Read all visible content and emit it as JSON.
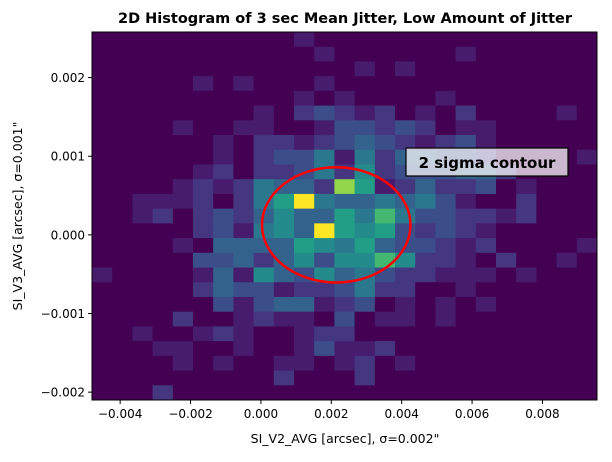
{
  "chart_data": {
    "type": "heatmap",
    "subtype": "2d-histogram",
    "title": "2D Histogram of 3 sec Mean Jitter, Low Amount of Jitter",
    "xlabel": "SI_V2_AVG [arcsec], σ=0.002\"",
    "ylabel": "SI_V3_AVG [arcsec], σ=0.001\"",
    "xlim": [
      -0.0048,
      0.00955
    ],
    "ylim": [
      -0.0021,
      0.00258
    ],
    "x_ticks": [
      "−0.004",
      "−0.002",
      "0.000",
      "0.002",
      "0.004",
      "0.006",
      "0.008"
    ],
    "x_tick_values": [
      -0.004,
      -0.002,
      0.0,
      0.002,
      0.004,
      0.006,
      0.008
    ],
    "y_ticks": [
      "−0.002",
      "−0.001",
      "0.000",
      "0.001",
      "0.002"
    ],
    "y_tick_values": [
      -0.002,
      -0.001,
      0.0,
      0.001,
      0.002
    ],
    "colormap": "viridis",
    "grid": false,
    "bins": [
      25,
      25
    ],
    "counts_rows_top_to_bottom": [
      [
        0,
        0,
        0,
        0,
        0,
        0,
        0,
        0,
        0,
        0,
        1,
        0,
        0,
        0,
        0,
        0,
        0,
        0,
        0,
        0,
        0,
        0,
        0,
        0,
        0
      ],
      [
        0,
        0,
        0,
        0,
        0,
        0,
        0,
        0,
        0,
        0,
        0,
        1,
        0,
        0,
        0,
        0,
        0,
        0,
        1,
        0,
        0,
        0,
        0,
        0,
        0
      ],
      [
        0,
        0,
        0,
        0,
        0,
        0,
        0,
        0,
        0,
        0,
        0,
        0,
        0,
        1,
        0,
        1,
        0,
        0,
        0,
        0,
        0,
        0,
        0,
        0,
        0
      ],
      [
        0,
        0,
        0,
        0,
        0,
        1,
        0,
        1,
        0,
        0,
        0,
        1,
        0,
        0,
        0,
        0,
        0,
        0,
        0,
        0,
        0,
        0,
        0,
        0,
        0
      ],
      [
        0,
        0,
        0,
        0,
        0,
        0,
        0,
        0,
        0,
        0,
        1,
        0,
        1,
        0,
        0,
        0,
        0,
        1,
        0,
        0,
        0,
        0,
        0,
        0,
        0
      ],
      [
        0,
        0,
        0,
        0,
        0,
        0,
        0,
        0,
        1,
        0,
        2,
        3,
        2,
        1,
        2,
        0,
        1,
        0,
        2,
        0,
        0,
        0,
        0,
        1,
        0
      ],
      [
        0,
        0,
        0,
        0,
        1,
        0,
        0,
        1,
        1,
        0,
        0,
        1,
        3,
        3,
        2,
        3,
        2,
        0,
        1,
        1,
        0,
        0,
        0,
        0,
        0
      ],
      [
        0,
        0,
        0,
        0,
        0,
        0,
        1,
        0,
        2,
        2,
        1,
        2,
        3,
        4,
        3,
        2,
        1,
        2,
        3,
        1,
        0,
        0,
        0,
        0,
        0
      ],
      [
        0,
        0,
        0,
        0,
        0,
        0,
        1,
        0,
        2,
        3,
        3,
        5,
        1,
        5,
        2,
        4,
        4,
        3,
        3,
        2,
        0,
        0,
        0,
        0,
        1
      ],
      [
        0,
        0,
        0,
        0,
        0,
        1,
        2,
        0,
        2,
        2,
        3,
        5,
        2,
        6,
        2,
        3,
        3,
        3,
        4,
        4,
        2,
        0,
        0,
        0,
        0
      ],
      [
        0,
        0,
        0,
        0,
        1,
        2,
        1,
        2,
        5,
        4,
        4,
        2,
        9,
        7,
        1,
        2,
        4,
        2,
        2,
        3,
        0,
        1,
        0,
        0,
        0
      ],
      [
        0,
        0,
        1,
        1,
        1,
        2,
        0,
        2,
        5,
        7,
        10,
        5,
        4,
        4,
        5,
        4,
        5,
        3,
        1,
        0,
        0,
        2,
        0,
        0,
        0
      ],
      [
        0,
        0,
        1,
        2,
        0,
        2,
        3,
        2,
        4,
        6,
        4,
        4,
        7,
        5,
        8,
        5,
        3,
        3,
        2,
        2,
        1,
        2,
        0,
        0,
        0
      ],
      [
        0,
        0,
        0,
        0,
        0,
        2,
        3,
        1,
        5,
        6,
        4,
        10,
        7,
        6,
        7,
        3,
        2,
        3,
        2,
        1,
        0,
        0,
        0,
        0,
        0
      ],
      [
        0,
        0,
        0,
        0,
        1,
        0,
        4,
        4,
        4,
        4,
        7,
        6,
        5,
        7,
        4,
        3,
        3,
        2,
        1,
        2,
        0,
        0,
        0,
        0,
        1
      ],
      [
        0,
        0,
        0,
        0,
        0,
        3,
        3,
        4,
        2,
        4,
        6,
        3,
        6,
        6,
        8,
        6,
        2,
        2,
        1,
        0,
        2,
        0,
        0,
        1,
        0
      ],
      [
        1,
        0,
        0,
        0,
        0,
        1,
        4,
        1,
        6,
        4,
        3,
        6,
        4,
        5,
        3,
        2,
        2,
        1,
        1,
        1,
        0,
        1,
        0,
        0,
        0
      ],
      [
        0,
        0,
        0,
        0,
        0,
        2,
        4,
        3,
        3,
        1,
        2,
        2,
        3,
        5,
        2,
        2,
        0,
        0,
        1,
        0,
        0,
        0,
        0,
        0,
        0
      ],
      [
        0,
        0,
        0,
        0,
        0,
        0,
        3,
        1,
        3,
        4,
        4,
        1,
        2,
        3,
        0,
        1,
        0,
        1,
        0,
        1,
        0,
        0,
        0,
        0,
        0
      ],
      [
        0,
        0,
        0,
        0,
        2,
        0,
        0,
        1,
        2,
        1,
        1,
        0,
        3,
        0,
        1,
        1,
        0,
        1,
        0,
        0,
        0,
        0,
        0,
        0,
        0
      ],
      [
        0,
        0,
        1,
        0,
        0,
        1,
        2,
        1,
        0,
        0,
        1,
        2,
        2,
        0,
        0,
        0,
        0,
        0,
        0,
        0,
        0,
        0,
        0,
        0,
        0
      ],
      [
        0,
        0,
        0,
        1,
        1,
        0,
        0,
        1,
        0,
        0,
        1,
        3,
        1,
        1,
        2,
        0,
        0,
        0,
        0,
        0,
        0,
        0,
        0,
        0,
        0
      ],
      [
        0,
        0,
        0,
        0,
        1,
        0,
        1,
        0,
        0,
        1,
        1,
        0,
        1,
        2,
        0,
        1,
        0,
        0,
        0,
        0,
        0,
        0,
        0,
        0,
        0
      ],
      [
        0,
        0,
        0,
        0,
        0,
        0,
        0,
        0,
        0,
        2,
        0,
        0,
        0,
        2,
        0,
        0,
        0,
        0,
        0,
        0,
        0,
        0,
        0,
        0,
        0
      ],
      [
        0,
        0,
        0,
        2,
        0,
        0,
        0,
        0,
        0,
        0,
        0,
        0,
        0,
        0,
        0,
        0,
        0,
        0,
        0,
        0,
        0,
        0,
        0,
        0,
        0
      ]
    ],
    "contour": {
      "label": "2 sigma contour",
      "center": [
        0.00214,
        0.000127
      ],
      "semi_axes": [
        0.00211,
        0.000733
      ],
      "color": "#ff0000"
    }
  }
}
